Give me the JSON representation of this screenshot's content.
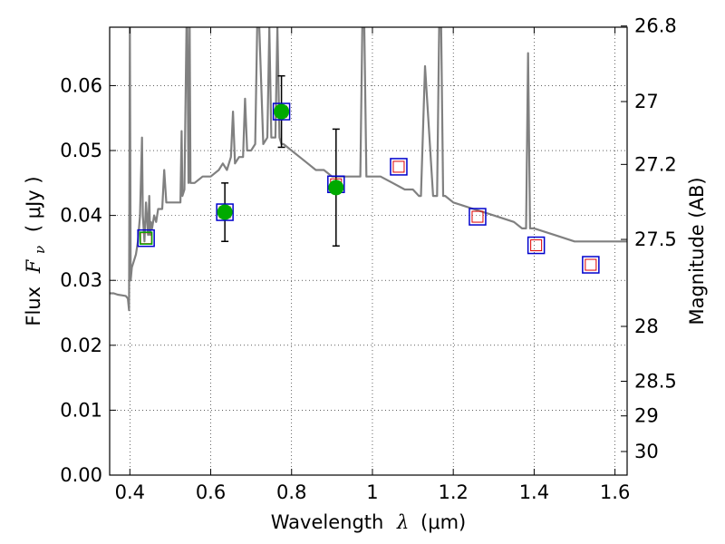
{
  "chart_data": {
    "type": "scatter",
    "xlabel": "Wavelength",
    "xlabel_symbol": "λ",
    "xlabel_unit": "(μm)",
    "ylabel": "Flux",
    "ylabel_symbol": "F",
    "ylabel_subscript": "ν",
    "ylabel_unit": "( μJy )",
    "y2label": "Magnitude (AB)",
    "xlim": [
      0.35,
      1.63
    ],
    "ylim": [
      0.0,
      0.069
    ],
    "x_ticks": [
      0.4,
      0.6,
      0.8,
      1.0,
      1.2,
      1.4,
      1.6
    ],
    "x_tick_labels": [
      "0.4",
      "0.6",
      "0.8",
      "1",
      "1.2",
      "1.4",
      "1.6"
    ],
    "y_ticks": [
      0.0,
      0.01,
      0.02,
      0.03,
      0.04,
      0.05,
      0.06
    ],
    "y_tick_labels": [
      "0.00",
      "0.01",
      "0.02",
      "0.03",
      "0.04",
      "0.05",
      "0.06"
    ],
    "y2_ticks": [
      26.8,
      27.0,
      27.2,
      27.5,
      28.0,
      28.5,
      29.0,
      30.0
    ],
    "y2_tick_labels": [
      "26.8",
      "27",
      "27.2",
      "27.5",
      "28",
      "28.5",
      "29",
      "30"
    ],
    "grid": true,
    "colors": {
      "spectrum": "#808080",
      "observed": "#00aa00",
      "model_box": "#0000cc",
      "model_inner": "#dd0000",
      "errorbar": "#000000"
    },
    "spectrum": {
      "x": [
        0.35,
        0.36,
        0.37,
        0.38,
        0.39,
        0.395,
        0.398,
        0.4,
        0.402,
        0.405,
        0.41,
        0.415,
        0.42,
        0.425,
        0.43,
        0.432,
        0.434,
        0.436,
        0.44,
        0.445,
        0.448,
        0.45,
        0.452,
        0.455,
        0.46,
        0.465,
        0.47,
        0.48,
        0.485,
        0.49,
        0.5,
        0.51,
        0.52,
        0.525,
        0.528,
        0.53,
        0.535,
        0.54,
        0.542,
        0.545,
        0.548,
        0.55,
        0.56,
        0.58,
        0.6,
        0.62,
        0.63,
        0.64,
        0.65,
        0.655,
        0.66,
        0.67,
        0.68,
        0.685,
        0.69,
        0.7,
        0.71,
        0.715,
        0.72,
        0.73,
        0.74,
        0.745,
        0.75,
        0.76,
        0.765,
        0.77,
        0.775,
        0.78,
        0.8,
        0.82,
        0.84,
        0.86,
        0.88,
        0.9,
        0.92,
        0.95,
        0.97,
        0.975,
        0.98,
        0.985,
        0.99,
        1.0,
        1.02,
        1.05,
        1.08,
        1.1,
        1.115,
        1.12,
        1.13,
        1.15,
        1.16,
        1.165,
        1.17,
        1.175,
        1.18,
        1.2,
        1.25,
        1.3,
        1.35,
        1.37,
        1.38,
        1.385,
        1.39,
        1.395,
        1.4,
        1.45,
        1.5,
        1.55,
        1.6,
        1.63
      ],
      "y": [
        0.028,
        0.028,
        0.0278,
        0.0277,
        0.0276,
        0.0272,
        0.0254,
        0.069,
        0.03,
        0.032,
        0.033,
        0.034,
        0.036,
        0.04,
        0.052,
        0.04,
        0.038,
        0.036,
        0.042,
        0.037,
        0.043,
        0.037,
        0.039,
        0.038,
        0.04,
        0.039,
        0.041,
        0.041,
        0.047,
        0.042,
        0.042,
        0.042,
        0.042,
        0.042,
        0.053,
        0.043,
        0.044,
        0.069,
        0.069,
        0.045,
        0.069,
        0.045,
        0.045,
        0.046,
        0.046,
        0.047,
        0.048,
        0.047,
        0.049,
        0.056,
        0.048,
        0.049,
        0.049,
        0.058,
        0.05,
        0.05,
        0.051,
        0.069,
        0.069,
        0.051,
        0.052,
        0.069,
        0.052,
        0.052,
        0.069,
        0.052,
        0.051,
        0.051,
        0.05,
        0.049,
        0.048,
        0.047,
        0.047,
        0.046,
        0.046,
        0.046,
        0.046,
        0.069,
        0.069,
        0.046,
        0.046,
        0.046,
        0.046,
        0.045,
        0.044,
        0.044,
        0.043,
        0.043,
        0.063,
        0.043,
        0.043,
        0.069,
        0.069,
        0.043,
        0.043,
        0.042,
        0.041,
        0.04,
        0.039,
        0.038,
        0.038,
        0.065,
        0.038,
        0.038,
        0.038,
        0.037,
        0.036,
        0.036,
        0.036,
        0.036
      ]
    },
    "observed": [
      {
        "x": 0.44,
        "y": 0.0365,
        "marker": "open-square"
      },
      {
        "x": 0.635,
        "y": 0.0405,
        "yerr": 0.0045
      },
      {
        "x": 0.775,
        "y": 0.056,
        "yerr": 0.0055
      },
      {
        "x": 0.91,
        "y": 0.0443,
        "yerr": 0.009
      }
    ],
    "model": [
      {
        "x": 0.44,
        "y": 0.0365
      },
      {
        "x": 0.635,
        "y": 0.0405
      },
      {
        "x": 0.775,
        "y": 0.056
      },
      {
        "x": 0.91,
        "y": 0.0448
      },
      {
        "x": 1.065,
        "y": 0.0475
      },
      {
        "x": 1.26,
        "y": 0.0398
      },
      {
        "x": 1.405,
        "y": 0.0354
      },
      {
        "x": 1.54,
        "y": 0.0324
      }
    ]
  }
}
